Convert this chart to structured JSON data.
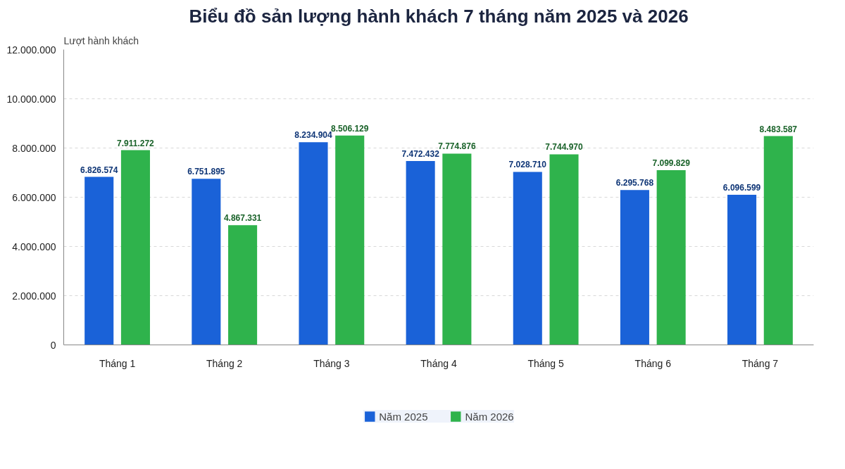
{
  "chart_data": {
    "type": "bar",
    "title": "Biểu đồ sản lượng hành khách 7 tháng năm 2025 và 2026",
    "ylabel": "Lượt hành khách",
    "categories": [
      "Tháng 1",
      "Tháng 2",
      "Tháng 3",
      "Tháng 4",
      "Tháng 5",
      "Tháng 6",
      "Tháng 7"
    ],
    "series": [
      {
        "name": "Năm 2025",
        "color": "#1a62d8",
        "values": [
          6826574,
          6751895,
          8234904,
          7472432,
          7028710,
          6295768,
          6096599
        ],
        "value_labels": [
          "6.826.574",
          "6.751.895",
          "8.234.904",
          "7.472.432",
          "7.028.710",
          "6.295.768",
          "6.096.599"
        ]
      },
      {
        "name": "Năm 2026",
        "color": "#2fb34c",
        "values": [
          7911272,
          4867331,
          8506129,
          7774876,
          7744970,
          7099829,
          8483587
        ],
        "value_labels": [
          "7.911.272",
          "4.867.331",
          "8.506.129",
          "7.774.876",
          "7.744.970",
          "7.099.829",
          "8.483.587"
        ]
      }
    ],
    "ylim": [
      0,
      12000000
    ],
    "yticks": [
      0,
      {
        "value": 2000000,
        "label": "2.000.000"
      },
      {
        "value": 4000000,
        "label": "4.000.000"
      },
      {
        "value": 6000000,
        "label": "6.000.000"
      },
      {
        "value": 8000000,
        "label": "8.000.000"
      },
      {
        "value": 10000000,
        "label": "10.000.000"
      },
      {
        "value": 12000000,
        "label": "12.000.000"
      }
    ],
    "grid": "y",
    "legend": "bottom"
  }
}
